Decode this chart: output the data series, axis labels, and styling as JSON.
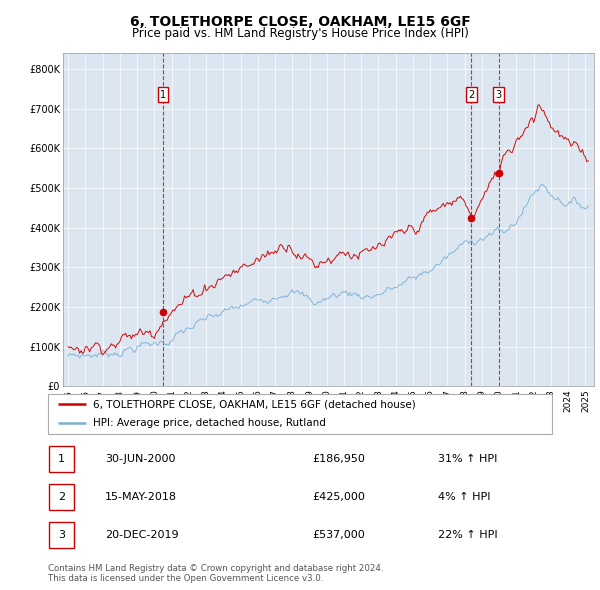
{
  "title": "6, TOLETHORPE CLOSE, OAKHAM, LE15 6GF",
  "subtitle": "Price paid vs. HM Land Registry's House Price Index (HPI)",
  "title_fontsize": 10,
  "subtitle_fontsize": 8.5,
  "background_color": "#dce6f1",
  "outer_bg_color": "#ffffff",
  "hpi_color": "#7ab0d4",
  "price_color": "#cc0000",
  "vline_color": "#cc0000",
  "yticks": [
    0,
    100000,
    200000,
    300000,
    400000,
    500000,
    600000,
    700000,
    800000
  ],
  "ytick_labels": [
    "£0",
    "£100K",
    "£200K",
    "£300K",
    "£400K",
    "£500K",
    "£600K",
    "£700K",
    "£800K"
  ],
  "xlim_start": 1994.7,
  "xlim_end": 2025.5,
  "ylim_min": 0,
  "ylim_max": 840000,
  "sales": [
    {
      "date_num": 2000.5,
      "price": 186950,
      "label": "1"
    },
    {
      "date_num": 2018.37,
      "price": 425000,
      "label": "2"
    },
    {
      "date_num": 2019.97,
      "price": 537000,
      "label": "3"
    }
  ],
  "legend_entries": [
    "6, TOLETHORPE CLOSE, OAKHAM, LE15 6GF (detached house)",
    "HPI: Average price, detached house, Rutland"
  ],
  "table_rows": [
    {
      "num": "1",
      "date": "30-JUN-2000",
      "price": "£186,950",
      "change": "31% ↑ HPI"
    },
    {
      "num": "2",
      "date": "15-MAY-2018",
      "price": "£425,000",
      "change": "4% ↑ HPI"
    },
    {
      "num": "3",
      "date": "20-DEC-2019",
      "price": "£537,000",
      "change": "22% ↑ HPI"
    }
  ],
  "footer": "Contains HM Land Registry data © Crown copyright and database right 2024.\nThis data is licensed under the Open Government Licence v3.0.",
  "xticks": [
    1995,
    1996,
    1997,
    1998,
    1999,
    2000,
    2001,
    2002,
    2003,
    2004,
    2005,
    2006,
    2007,
    2008,
    2009,
    2010,
    2011,
    2012,
    2013,
    2014,
    2015,
    2016,
    2017,
    2018,
    2019,
    2020,
    2021,
    2022,
    2023,
    2024,
    2025
  ]
}
